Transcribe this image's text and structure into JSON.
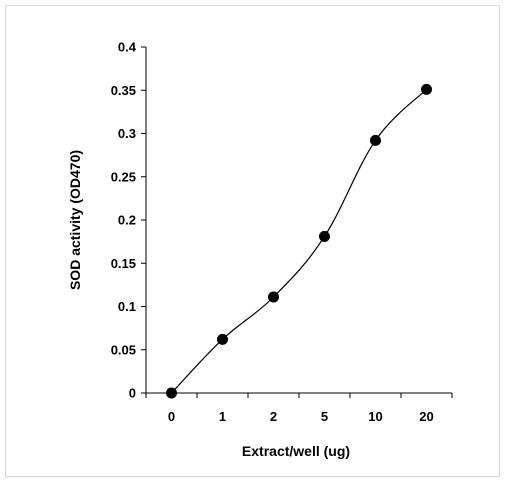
{
  "chart_data": {
    "type": "line",
    "title": "",
    "xlabel": "Extract/well (ug)",
    "ylabel": "SOD activity (OD470)",
    "categories": [
      "0",
      "1",
      "2",
      "5",
      "10",
      "20"
    ],
    "series": [
      {
        "values": [
          0.0,
          0.062,
          0.111,
          0.181,
          0.292,
          0.351
        ]
      }
    ],
    "ylim": [
      0,
      0.4
    ],
    "yticks": [
      "0",
      "0.05",
      "0.1",
      "0.15",
      "0.2",
      "0.25",
      "0.3",
      "0.35",
      "0.4"
    ],
    "grid": false,
    "legend": "none",
    "colors": {
      "line": "#000000",
      "marker": "#000000",
      "axis": "#000000"
    }
  }
}
